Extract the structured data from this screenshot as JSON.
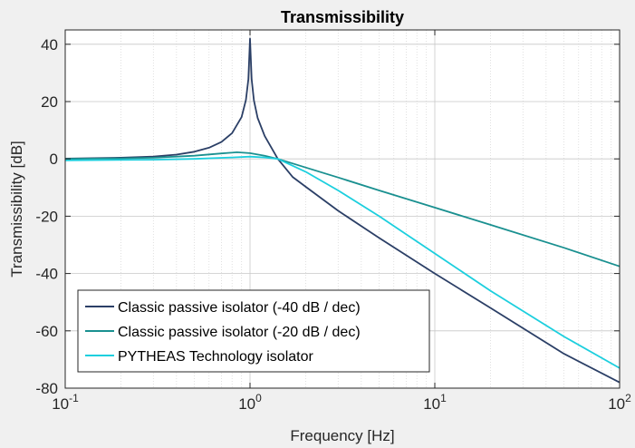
{
  "chart_data": {
    "type": "line",
    "title": "Transmissibility",
    "xlabel": "Frequency [Hz]",
    "ylabel": "Transmissibility [dB]",
    "xscale": "log",
    "xlim": [
      0.1,
      100
    ],
    "ylim": [
      -80,
      45
    ],
    "xticks": [
      {
        "base": "10",
        "exp": "-1",
        "value": 0.1
      },
      {
        "base": "10",
        "exp": "0",
        "value": 1
      },
      {
        "base": "10",
        "exp": "1",
        "value": 10
      },
      {
        "base": "10",
        "exp": "2",
        "value": 100
      }
    ],
    "yticks": [
      "40",
      "20",
      "0",
      "-20",
      "-40",
      "-60",
      "-80"
    ],
    "ytick_values": [
      40,
      20,
      0,
      -20,
      -40,
      -60,
      -80
    ],
    "grid": true,
    "legend_position": "bottom-left",
    "series": [
      {
        "name": "Classic passive isolator (-40 dB / dec)",
        "color": "#2b3f66",
        "x": [
          0.1,
          0.2,
          0.3,
          0.4,
          0.5,
          0.6,
          0.7,
          0.8,
          0.9,
          0.95,
          0.98,
          1.0,
          1.02,
          1.05,
          1.1,
          1.2,
          1.414,
          1.7,
          2,
          3,
          5,
          10,
          20,
          50,
          100
        ],
        "y": [
          0.1,
          0.4,
          0.8,
          1.5,
          2.5,
          3.9,
          5.9,
          9.0,
          14.6,
          20.6,
          27.8,
          42.0,
          27.8,
          20.4,
          14.3,
          8.0,
          0.0,
          -6.3,
          -9.7,
          -18.1,
          -27.6,
          -40.0,
          -52.0,
          -68.0,
          -78.0
        ]
      },
      {
        "name": "Classic passive isolator (-20 dB / dec)",
        "color": "#1a9090",
        "x": [
          0.1,
          0.2,
          0.3,
          0.5,
          0.7,
          0.85,
          1.0,
          1.2,
          1.414,
          2,
          3,
          5,
          10,
          20,
          50,
          100
        ],
        "y": [
          0.0,
          0.2,
          0.4,
          1.1,
          1.9,
          2.3,
          2.0,
          1.1,
          0.0,
          -3.0,
          -6.5,
          -11.0,
          -17.0,
          -23.0,
          -31.0,
          -37.5
        ]
      },
      {
        "name": "PYTHEAS Technology isolator",
        "color": "#1ccfde",
        "x": [
          0.1,
          0.3,
          0.5,
          0.8,
          1.0,
          1.2,
          1.414,
          2,
          3,
          5,
          10,
          20,
          50,
          100
        ],
        "y": [
          -0.5,
          -0.3,
          0.0,
          0.5,
          0.8,
          0.5,
          0.0,
          -4.5,
          -11.0,
          -20.0,
          -33.0,
          -46.0,
          -62.0,
          -73.0
        ]
      }
    ]
  }
}
